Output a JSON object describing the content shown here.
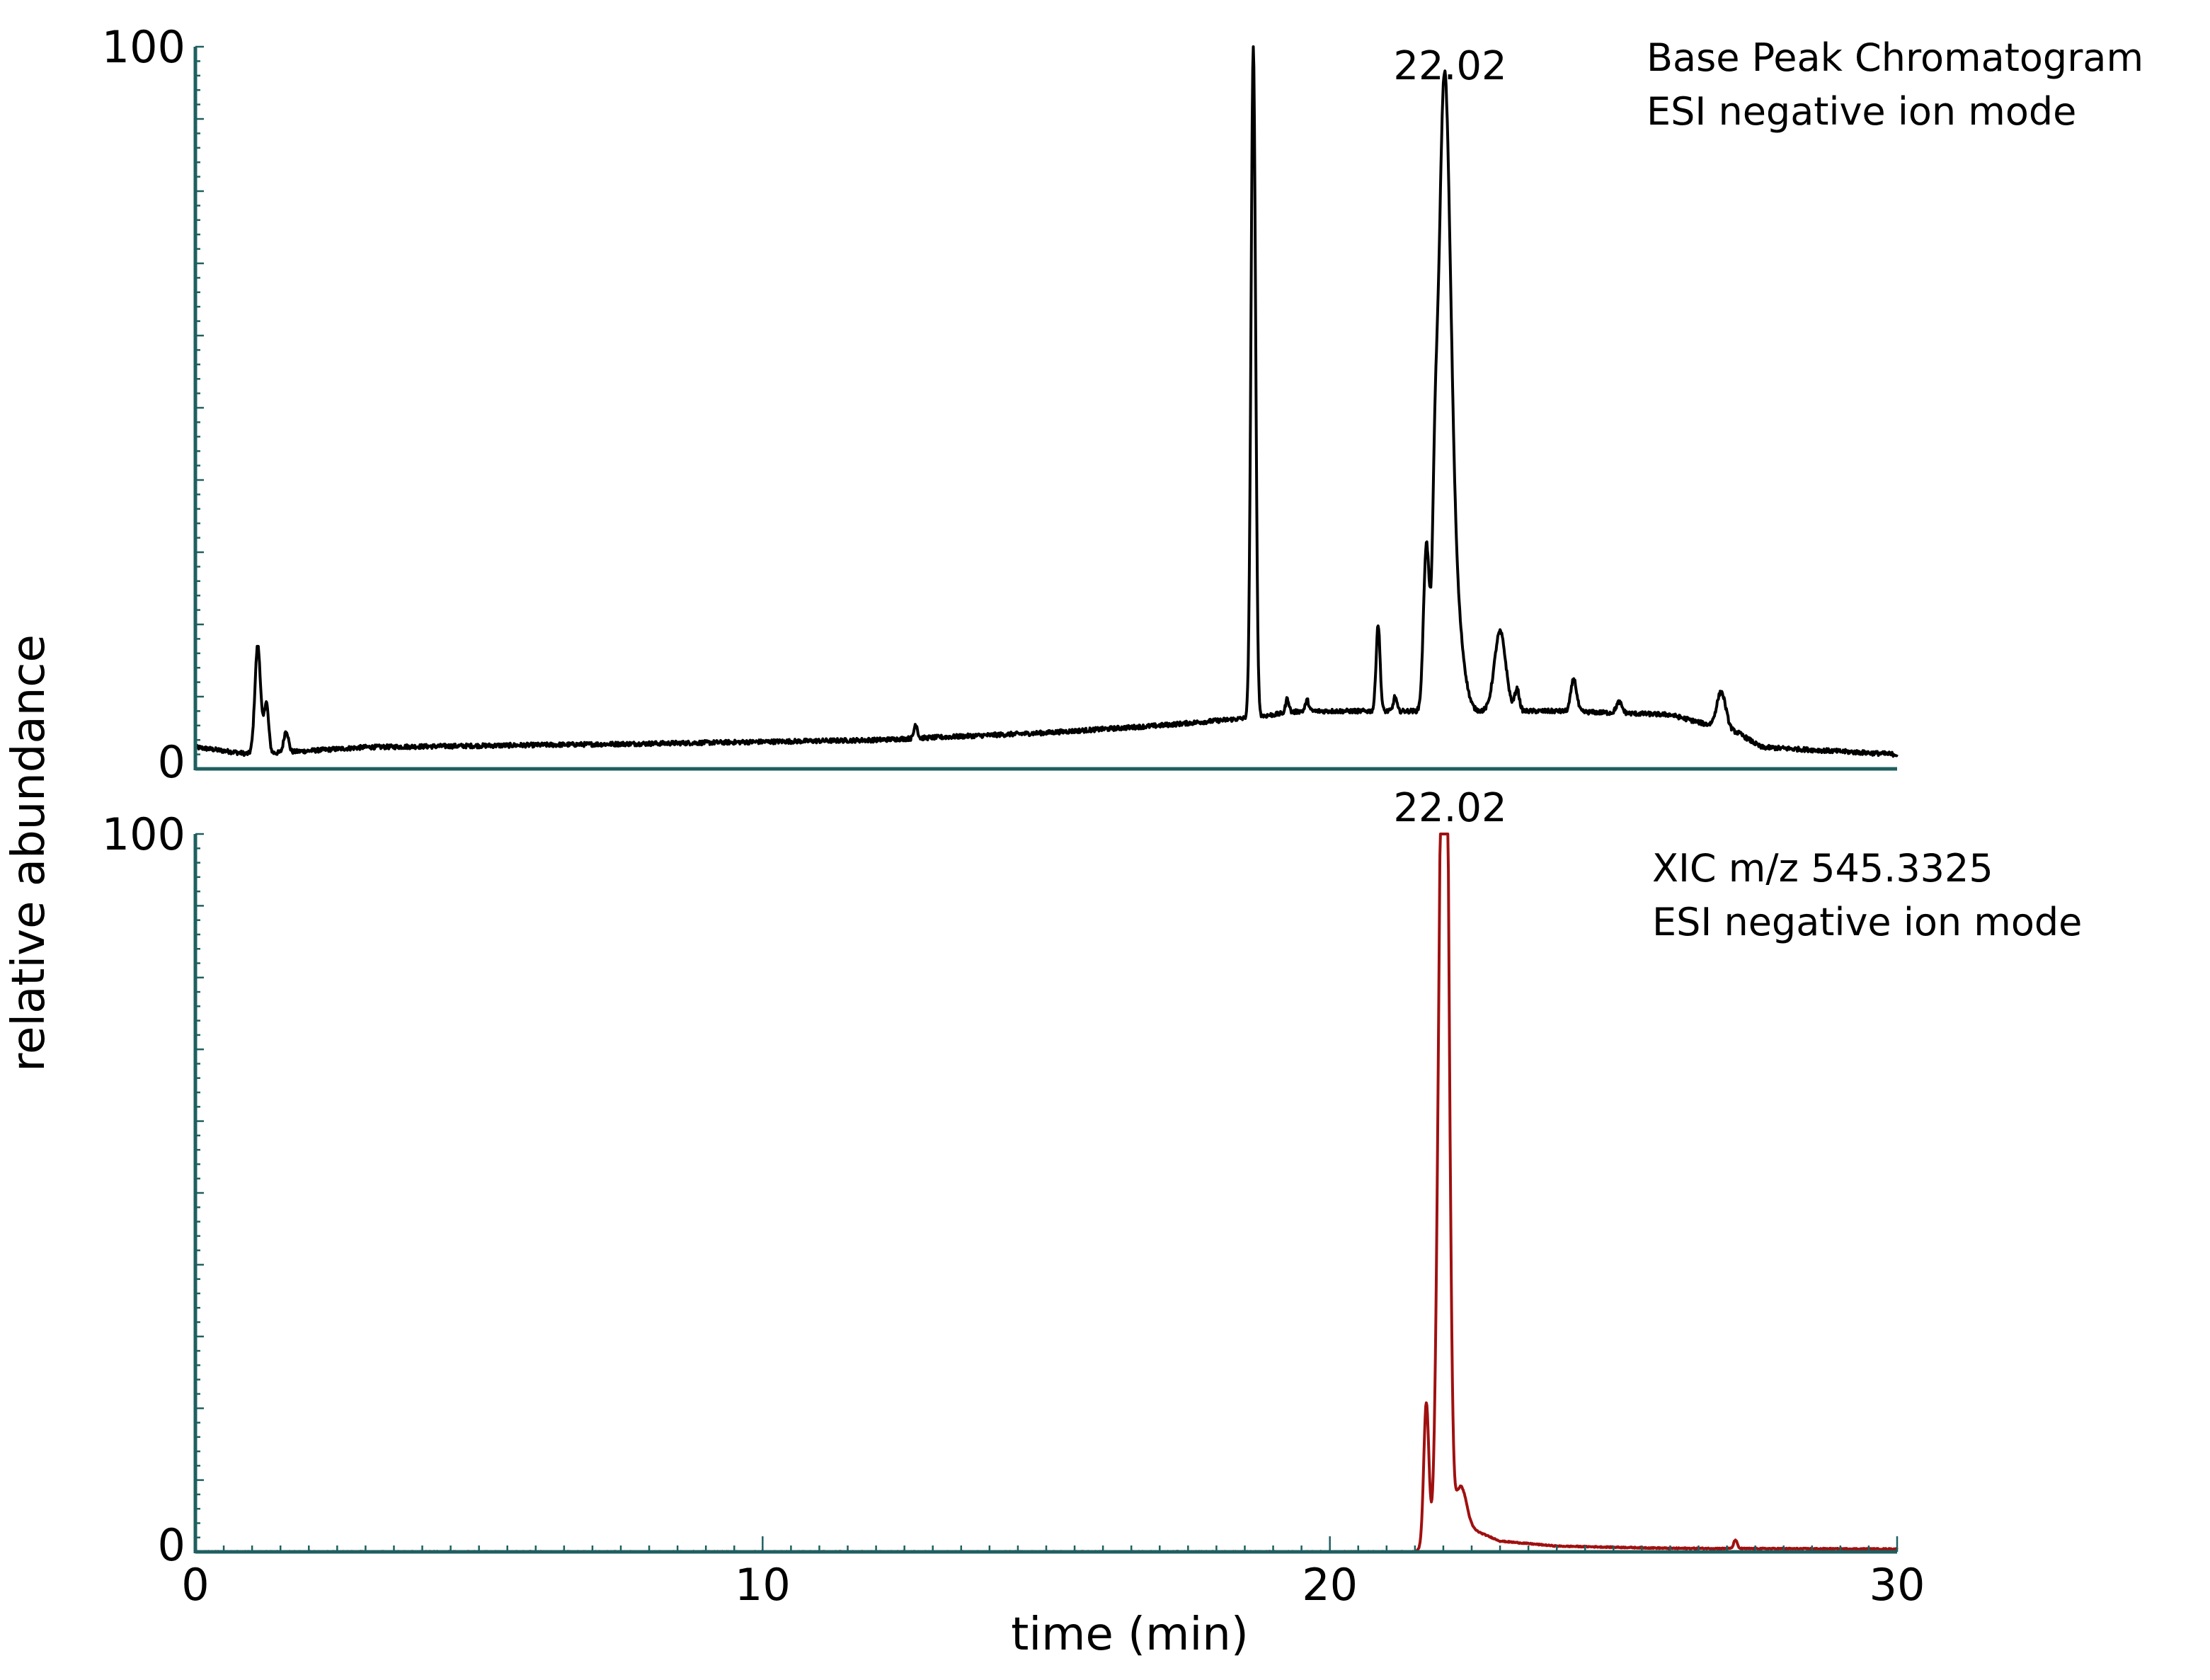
{
  "chart_data": {
    "ylabel": "relative abundance",
    "xlabel": "time (min)",
    "xlim": [
      0,
      30
    ],
    "x_ticks": [
      0,
      10,
      20,
      30
    ],
    "x_tick_labels": [
      "0",
      "10",
      "20",
      "30"
    ],
    "axis_color": "#1f5f5f",
    "panels": [
      {
        "id": "bpc",
        "type": "line",
        "annotation_lines": [
          "Base Peak Chromatogram",
          "ESI negative ion mode"
        ],
        "peak_label": "22.02",
        "peak_label_time": 22.02,
        "ylim": [
          0,
          100
        ],
        "y_tick_labels": [
          "0",
          "100"
        ],
        "color": "#000000",
        "baseline": [
          [
            0,
            3
          ],
          [
            1,
            2
          ],
          [
            3,
            3
          ],
          [
            8,
            3.5
          ],
          [
            12,
            4
          ],
          [
            15,
            5
          ],
          [
            17,
            6
          ],
          [
            18.5,
            7
          ],
          [
            19.5,
            8
          ],
          [
            21.5,
            8
          ],
          [
            24,
            8
          ],
          [
            26,
            7.5
          ],
          [
            27.2,
            5
          ],
          [
            27.6,
            3
          ],
          [
            30,
            2
          ]
        ],
        "peaks": [
          {
            "t": 1.1,
            "h": 15,
            "w": 0.05
          },
          {
            "t": 1.25,
            "h": 7,
            "w": 0.04
          },
          {
            "t": 1.6,
            "h": 3,
            "w": 0.04
          },
          {
            "t": 12.7,
            "h": 2,
            "w": 0.03
          },
          {
            "t": 18.65,
            "h": 93,
            "w": 0.04
          },
          {
            "t": 19.25,
            "h": 2,
            "w": 0.03
          },
          {
            "t": 19.6,
            "h": 1.5,
            "w": 0.03
          },
          {
            "t": 20.85,
            "h": 12,
            "w": 0.035
          },
          {
            "t": 21.15,
            "h": 2,
            "w": 0.03
          },
          {
            "t": 21.7,
            "h": 22,
            "w": 0.05
          },
          {
            "t": 21.85,
            "h": 15,
            "w": 0.04
          },
          {
            "t": 22.02,
            "h": 87,
            "w": 0.11
          },
          {
            "t": 22.25,
            "h": 10,
            "w": 0.12
          },
          {
            "t": 23.0,
            "h": 11,
            "w": 0.1
          },
          {
            "t": 23.3,
            "h": 3,
            "w": 0.04
          },
          {
            "t": 24.3,
            "h": 4.5,
            "w": 0.05
          },
          {
            "t": 25.1,
            "h": 1.5,
            "w": 0.05
          },
          {
            "t": 26.9,
            "h": 5,
            "w": 0.08
          }
        ],
        "noise": 0.6
      },
      {
        "id": "xic",
        "type": "line",
        "annotation_lines": [
          "XIC m/z 545.3325",
          "ESI negative ion mode"
        ],
        "peak_label": "22.02",
        "peak_label_time": 22.02,
        "ylim": [
          0,
          100
        ],
        "y_tick_labels": [
          "0",
          "100"
        ],
        "color": "#a01010",
        "baseline": [
          [
            0,
            0
          ],
          [
            21.5,
            0
          ],
          [
            22.4,
            3.5
          ],
          [
            23.0,
            1.5
          ],
          [
            24,
            0.8
          ],
          [
            26,
            0.5
          ],
          [
            30,
            0.4
          ]
        ],
        "peaks": [
          {
            "t": 21.7,
            "h": 20,
            "w": 0.045
          },
          {
            "t": 21.97,
            "h": 86,
            "w": 0.07
          },
          {
            "t": 22.05,
            "h": 90,
            "w": 0.06
          },
          {
            "t": 22.3,
            "h": 6,
            "w": 0.1
          },
          {
            "t": 27.15,
            "h": 1.2,
            "w": 0.03
          }
        ],
        "noise": 0.15
      }
    ]
  }
}
